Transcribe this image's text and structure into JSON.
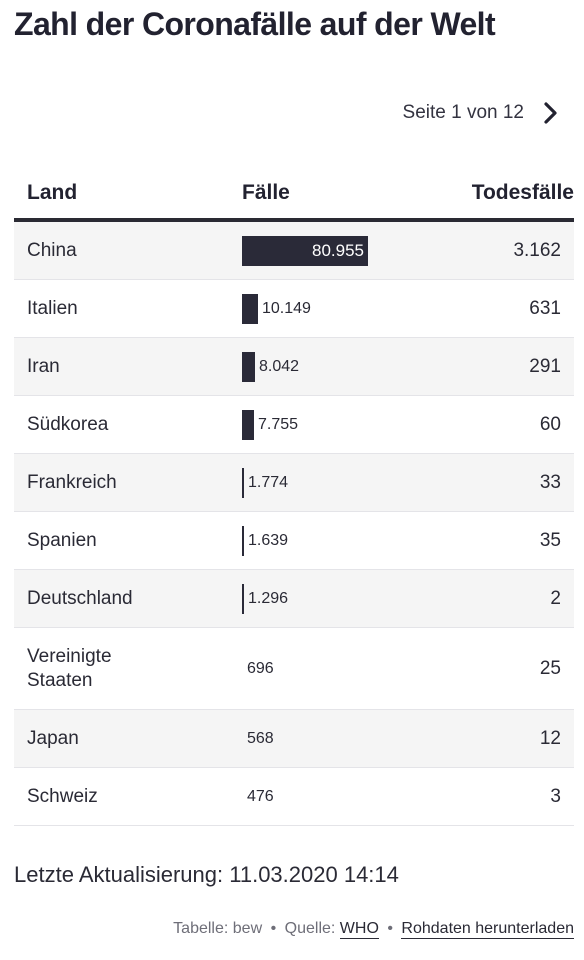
{
  "title": "Zahl der Coronafälle auf der Welt",
  "pager": {
    "label": "Seite 1 von 12",
    "next_icon": "chevron-right-icon"
  },
  "table": {
    "headers": {
      "land": "Land",
      "cases": "Fälle",
      "deaths": "Todesfälle"
    },
    "rows": [
      {
        "land": "China",
        "cases": "80.955",
        "deaths": "3.162"
      },
      {
        "land": "Italien",
        "cases": "10.149",
        "deaths": "631"
      },
      {
        "land": "Iran",
        "cases": "8.042",
        "deaths": "291"
      },
      {
        "land": "Südkorea",
        "cases": "7.755",
        "deaths": "60"
      },
      {
        "land": "Frankreich",
        "cases": "1.774",
        "deaths": "33"
      },
      {
        "land": "Spanien",
        "cases": "1.639",
        "deaths": "35"
      },
      {
        "land": "Deutschland",
        "cases": "1.296",
        "deaths": "2"
      },
      {
        "land": "Vereinigte Staaten",
        "cases": "696",
        "deaths": "25"
      },
      {
        "land": "Japan",
        "cases": "568",
        "deaths": "12"
      },
      {
        "land": "Schweiz",
        "cases": "476",
        "deaths": "3"
      }
    ]
  },
  "chart_data": {
    "type": "table",
    "title": "Zahl der Coronafälle auf der Welt",
    "columns": [
      "Land",
      "Fälle",
      "Todesfälle"
    ],
    "categories": [
      "China",
      "Italien",
      "Iran",
      "Südkorea",
      "Frankreich",
      "Spanien",
      "Deutschland",
      "Vereinigte Staaten",
      "Japan",
      "Schweiz"
    ],
    "series": [
      {
        "name": "Fälle",
        "values": [
          80955,
          10149,
          8042,
          7755,
          1774,
          1639,
          1296,
          696,
          568,
          476
        ]
      },
      {
        "name": "Todesfälle",
        "values": [
          3162,
          631,
          291,
          60,
          33,
          35,
          2,
          25,
          12,
          3
        ]
      }
    ],
    "bar_color": "#2a2a38"
  },
  "updated": "Letzte Aktualisierung: 11.03.2020 14:14",
  "footer": {
    "prefix": "Tabelle: bew",
    "sep1": "•",
    "source_label": "Quelle:",
    "source_link": "WHO",
    "sep2": "•",
    "download_link": "Rohdaten herunterladen"
  }
}
